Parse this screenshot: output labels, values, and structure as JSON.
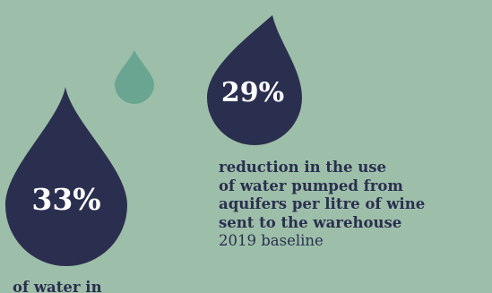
{
  "colors": {
    "background": "#9dbfa9",
    "drop_dark": "#2b2f4f",
    "drop_small": "#6aa592",
    "stat_text": "#ffffff",
    "caption_text": "#2b2f4f"
  },
  "drops": {
    "large": {
      "icon": "water-drop-icon",
      "stat": "33%"
    },
    "medium": {
      "icon": "water-drop-icon",
      "stat": "29%"
    },
    "small": {
      "icon": "water-drop-icon"
    }
  },
  "caption": {
    "headline": "reduction in the use\nof water pumped from\naquifers per litre of wine\nsent to the warehouse",
    "note": "2019 baseline"
  },
  "cut_off_text": "of water in"
}
